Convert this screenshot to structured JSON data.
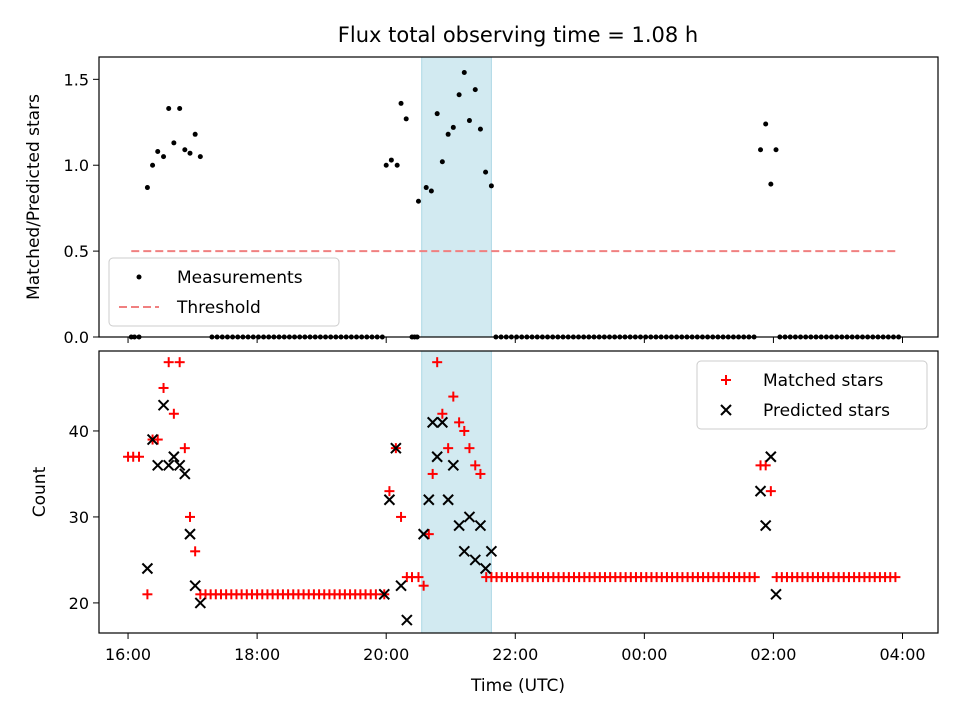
{
  "title": "Flux total observing time = 1.08 h",
  "xlabel": "Time (UTC)",
  "xticks": [
    {
      "t": 16,
      "label": "16:00"
    },
    {
      "t": 18,
      "label": "18:00"
    },
    {
      "t": 20,
      "label": "20:00"
    },
    {
      "t": 22,
      "label": "22:00"
    },
    {
      "t": 24,
      "label": "00:00"
    },
    {
      "t": 26,
      "label": "02:00"
    },
    {
      "t": 28,
      "label": "04:00"
    }
  ],
  "highlight_span": [
    20.55,
    21.63
  ],
  "colors": {
    "highlight": "#add8e6",
    "matched": "#ff0000",
    "predicted": "#000000",
    "measurement": "#000000",
    "threshold": "#f08080"
  },
  "chart_data": [
    {
      "type": "scatter",
      "ylabel": "Matched/Predicted stars",
      "xlim": [
        15.55,
        28.55
      ],
      "ylim": [
        0,
        1.63
      ],
      "yticks": [
        {
          "v": 0,
          "label": "0.0"
        },
        {
          "v": 0.5,
          "label": "0.5"
        },
        {
          "v": 1.0,
          "label": "1.0"
        },
        {
          "v": 1.5,
          "label": "1.5"
        }
      ],
      "legend": {
        "placement": "lower-left",
        "measurements_label": "Measurements",
        "threshold_label": "Threshold"
      },
      "threshold": {
        "value": 0.5,
        "x_start": 16.05,
        "x_end": 27.95
      },
      "measurements": [
        [
          16.05,
          0
        ],
        [
          16.1,
          0
        ],
        [
          16.17,
          0
        ],
        [
          16.3,
          0.87
        ],
        [
          16.38,
          1.0
        ],
        [
          16.46,
          1.08
        ],
        [
          16.55,
          1.05
        ],
        [
          16.63,
          1.33
        ],
        [
          16.71,
          1.13
        ],
        [
          16.8,
          1.33
        ],
        [
          16.88,
          1.09
        ],
        [
          16.96,
          1.07
        ],
        [
          17.04,
          1.18
        ],
        [
          17.12,
          1.05
        ],
        [
          20.0,
          1.0
        ],
        [
          20.08,
          1.03
        ],
        [
          20.17,
          1.0
        ],
        [
          20.23,
          1.36
        ],
        [
          20.31,
          1.27
        ],
        [
          20.5,
          0.79
        ],
        [
          20.62,
          0.87
        ],
        [
          20.7,
          0.85
        ],
        [
          20.79,
          1.3
        ],
        [
          20.87,
          1.02
        ],
        [
          20.96,
          1.18
        ],
        [
          21.04,
          1.22
        ],
        [
          21.13,
          1.41
        ],
        [
          21.21,
          1.54
        ],
        [
          21.29,
          1.26
        ],
        [
          21.38,
          1.44
        ],
        [
          21.46,
          1.21
        ],
        [
          21.54,
          0.96
        ],
        [
          21.63,
          0.88
        ],
        [
          25.8,
          1.09
        ],
        [
          25.88,
          1.24
        ],
        [
          25.96,
          0.89
        ],
        [
          26.04,
          1.09
        ]
      ],
      "zero_runs": [
        [
          17.3,
          19.97,
          0.08
        ],
        [
          20.4,
          20.48,
          0.04
        ],
        [
          21.7,
          25.75,
          0.08
        ],
        [
          26.1,
          27.98,
          0.08
        ]
      ]
    },
    {
      "type": "scatter",
      "ylabel": "Count",
      "xlim": [
        15.55,
        28.55
      ],
      "ylim": [
        16.5,
        49.3
      ],
      "yticks": [
        {
          "v": 20,
          "label": "20"
        },
        {
          "v": 30,
          "label": "30"
        },
        {
          "v": 40,
          "label": "40"
        }
      ],
      "legend": {
        "placement": "upper-right",
        "matched_label": "Matched stars",
        "predicted_label": "Predicted stars"
      },
      "matched_stars": [
        [
          16.0,
          37
        ],
        [
          16.08,
          37
        ],
        [
          16.17,
          37
        ],
        [
          16.3,
          21
        ],
        [
          16.38,
          39
        ],
        [
          16.46,
          39
        ],
        [
          16.55,
          45
        ],
        [
          16.63,
          48
        ],
        [
          16.71,
          42
        ],
        [
          16.8,
          48
        ],
        [
          16.88,
          38
        ],
        [
          16.96,
          30
        ],
        [
          17.04,
          26
        ],
        [
          17.12,
          21
        ],
        [
          19.97,
          21
        ],
        [
          20.05,
          33
        ],
        [
          20.15,
          38
        ],
        [
          20.23,
          30
        ],
        [
          20.32,
          23
        ],
        [
          20.4,
          23
        ],
        [
          20.5,
          23
        ],
        [
          20.58,
          22
        ],
        [
          20.66,
          28
        ],
        [
          20.72,
          35
        ],
        [
          20.79,
          48
        ],
        [
          20.87,
          42
        ],
        [
          20.96,
          38
        ],
        [
          21.04,
          44
        ],
        [
          21.13,
          41
        ],
        [
          21.21,
          40
        ],
        [
          21.29,
          38
        ],
        [
          21.38,
          36
        ],
        [
          21.46,
          35
        ],
        [
          25.8,
          36
        ],
        [
          25.88,
          36
        ],
        [
          25.96,
          33
        ]
      ],
      "matched_runs": [
        [
          17.2,
          19.9,
          0.08,
          21
        ],
        [
          21.55,
          25.75,
          0.08,
          23
        ],
        [
          26.05,
          27.95,
          0.08,
          23
        ]
      ],
      "predicted_stars": [
        [
          16.3,
          24
        ],
        [
          16.38,
          39
        ],
        [
          16.46,
          36
        ],
        [
          16.55,
          43
        ],
        [
          16.63,
          36
        ],
        [
          16.71,
          37
        ],
        [
          16.8,
          36
        ],
        [
          16.88,
          35
        ],
        [
          16.96,
          28
        ],
        [
          17.04,
          22
        ],
        [
          17.12,
          20
        ],
        [
          19.97,
          21
        ],
        [
          20.05,
          32
        ],
        [
          20.15,
          38
        ],
        [
          20.23,
          22
        ],
        [
          20.32,
          18
        ],
        [
          20.58,
          28
        ],
        [
          20.66,
          32
        ],
        [
          20.72,
          41
        ],
        [
          20.79,
          37
        ],
        [
          20.87,
          41
        ],
        [
          20.96,
          32
        ],
        [
          21.04,
          36
        ],
        [
          21.13,
          29
        ],
        [
          21.21,
          26
        ],
        [
          21.29,
          30
        ],
        [
          21.38,
          25
        ],
        [
          21.46,
          29
        ],
        [
          21.54,
          24
        ],
        [
          21.63,
          26
        ],
        [
          25.8,
          33
        ],
        [
          25.88,
          29
        ],
        [
          25.96,
          37
        ],
        [
          26.04,
          21
        ]
      ]
    }
  ]
}
